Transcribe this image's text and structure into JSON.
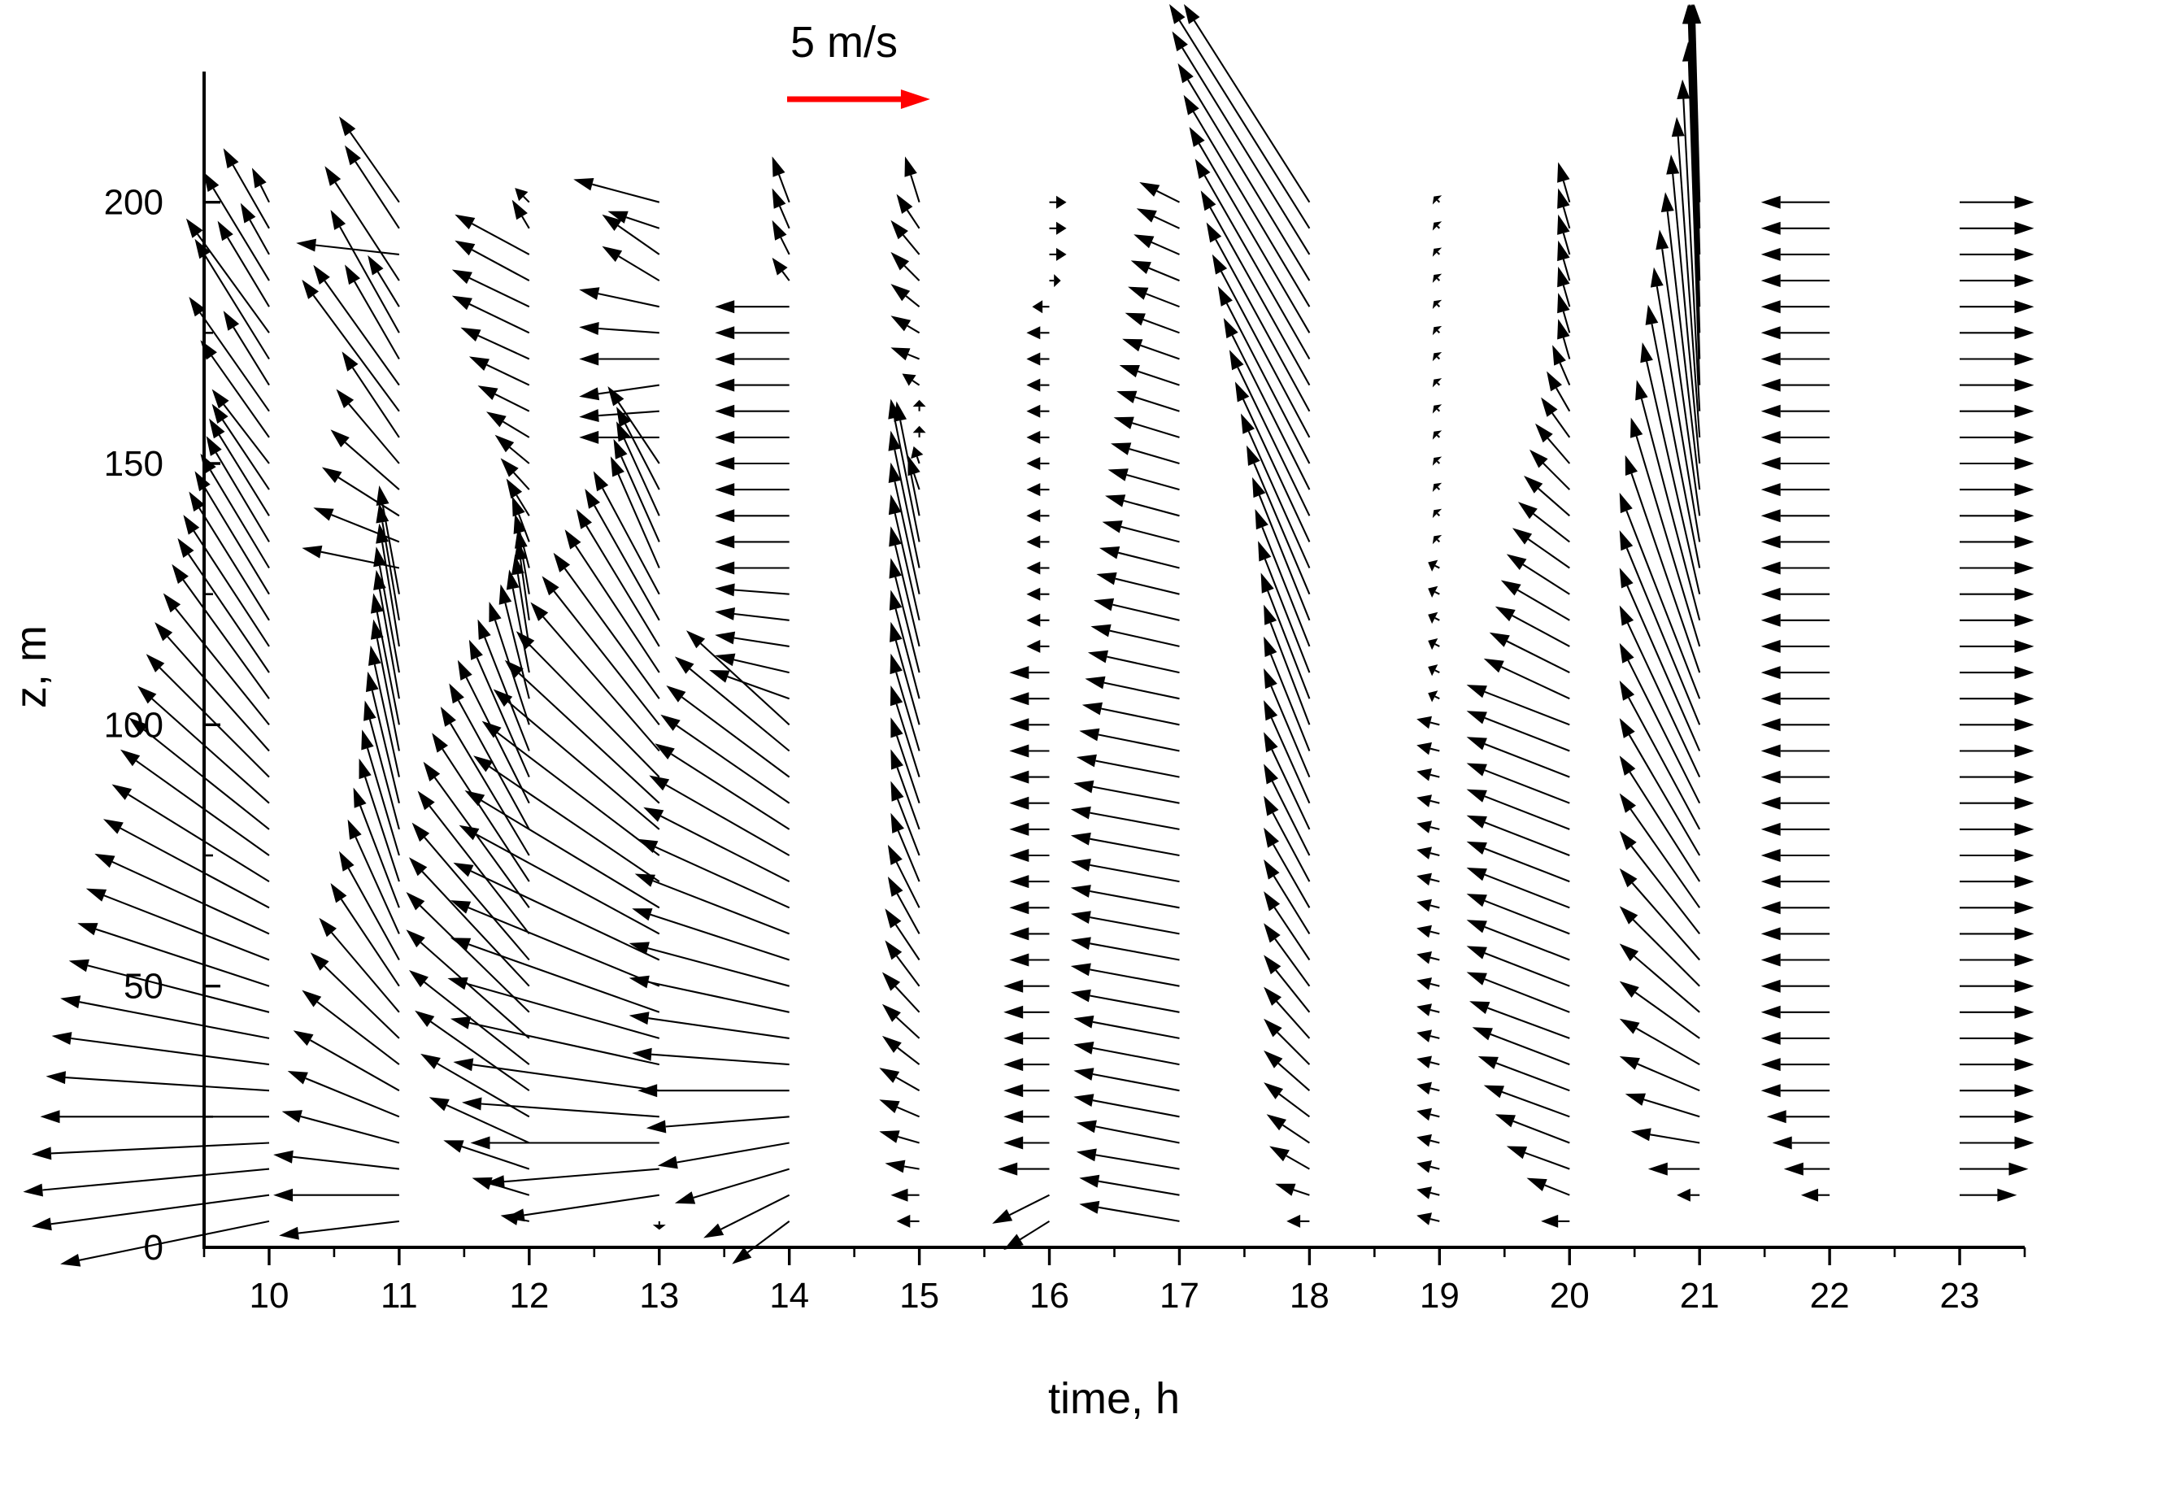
{
  "chart_data": {
    "type": "vector-field",
    "title": "",
    "xlabel": "time, h",
    "ylabel": "z, m",
    "xlim": [
      9.5,
      23.5
    ],
    "ylim": [
      0,
      225
    ],
    "xticks": [
      10,
      11,
      12,
      13,
      14,
      15,
      16,
      17,
      18,
      19,
      20,
      21,
      22,
      23
    ],
    "xtick_labels": [
      "10",
      "11",
      "12",
      "13",
      "14",
      "15",
      "16",
      "17",
      "18",
      "19",
      "20",
      "21",
      "22",
      "23"
    ],
    "yticks": [
      0,
      50,
      100,
      150,
      200
    ],
    "ytick_labels": [
      "0",
      "50",
      "100",
      "150",
      "200"
    ],
    "reference_vector": {
      "label": "5 m/s",
      "speed": 5,
      "direction": "east",
      "color": "#ff0000"
    },
    "vector_color": "#000000",
    "vector_scale_hours_per_mps": 0.22,
    "heights": [
      5,
      10,
      15,
      20,
      25,
      30,
      35,
      40,
      45,
      50,
      55,
      60,
      65,
      70,
      75,
      80,
      85,
      90,
      95,
      100,
      105,
      110,
      115,
      120,
      125,
      130,
      135,
      140,
      145,
      150,
      155,
      160,
      165,
      170,
      175,
      180,
      185,
      190,
      195,
      200
    ],
    "series": [
      {
        "time": 10,
        "u": [
          -7.3,
          -8.3,
          -8.6,
          -8.3,
          -8.0,
          -7.8,
          -7.6,
          -7.3,
          -7.0,
          -6.7,
          -6.4,
          -6.1,
          -5.8,
          -5.5,
          -5.2,
          -4.9,
          -4.6,
          -4.3,
          -4.0,
          -3.7,
          -3.4,
          -3.2,
          -3.0,
          -2.8,
          -2.6,
          -2.4,
          -2.2,
          -2.1,
          -2.0,
          -2.0,
          -2.4,
          -2.8,
          -1.6,
          -2.6,
          -2.9,
          -1.8,
          -2.3,
          -1.0,
          -1.6,
          -0.6
        ],
        "v": [
          -1.5,
          -1.1,
          -0.8,
          -0.4,
          0.0,
          0.5,
          1.0,
          1.4,
          1.8,
          2.2,
          2.5,
          2.8,
          3.1,
          3.4,
          3.7,
          3.9,
          4.1,
          4.3,
          4.5,
          4.6,
          4.7,
          4.7,
          4.6,
          4.5,
          4.3,
          4.0,
          3.7,
          3.4,
          3.0,
          2.6,
          3.4,
          4.0,
          2.6,
          4.2,
          4.0,
          3.0,
          3.8,
          1.8,
          2.8,
          1.2
        ]
      },
      {
        "time": 11,
        "u": [
          -4.2,
          -4.4,
          -4.4,
          -4.1,
          -3.9,
          -3.7,
          -3.4,
          -3.1,
          -2.8,
          -2.4,
          -2.1,
          -1.8,
          -1.6,
          -1.4,
          -1.3,
          -1.2,
          -1.1,
          -1.0,
          -0.9,
          -0.9,
          -0.8,
          -0.8,
          -0.7,
          -0.7,
          -0.7,
          -3.4,
          -3.0,
          -2.7,
          -2.4,
          -2.2,
          -2.0,
          -3.4,
          -3.0,
          -1.9,
          -2.4,
          -1.1,
          -2.6,
          -3.6,
          -1.9,
          -2.1
        ],
        "v": [
          -0.5,
          0.0,
          0.5,
          1.1,
          1.6,
          2.1,
          2.6,
          3.0,
          3.3,
          3.6,
          3.8,
          4.0,
          4.2,
          4.3,
          4.4,
          4.5,
          4.6,
          4.6,
          4.6,
          4.6,
          4.5,
          4.4,
          4.3,
          4.1,
          3.8,
          0.7,
          1.2,
          1.7,
          2.1,
          2.6,
          3.0,
          4.6,
          4.2,
          3.3,
          4.3,
          1.8,
          4.0,
          0.4,
          2.9,
          3.0
        ]
      },
      {
        "time": 12,
        "u": [
          -1.0,
          -2.0,
          -3.0,
          -3.5,
          -3.8,
          -4.0,
          -4.2,
          -4.3,
          -4.3,
          -4.2,
          -4.1,
          -3.9,
          -3.7,
          -3.4,
          -3.1,
          -2.8,
          -2.5,
          -2.1,
          -1.8,
          -1.4,
          -1.0,
          -0.7,
          -0.5,
          -0.4,
          -0.4,
          -0.5,
          -0.6,
          -0.8,
          -1.0,
          -1.2,
          -1.5,
          -1.8,
          -2.1,
          -2.4,
          -2.7,
          -2.7,
          -2.6,
          -2.6,
          -0.6,
          -0.5
        ],
        "v": [
          0.2,
          0.6,
          1.0,
          1.6,
          2.2,
          2.8,
          3.3,
          3.8,
          4.2,
          4.5,
          4.8,
          5.0,
          5.1,
          5.2,
          5.2,
          5.1,
          5.0,
          4.8,
          4.6,
          4.3,
          4.0,
          3.6,
          3.2,
          2.8,
          2.3,
          1.9,
          1.6,
          1.3,
          1.1,
          1.0,
          0.9,
          0.9,
          1.0,
          1.1,
          1.3,
          1.3,
          1.4,
          1.4,
          1.0,
          0.5
        ]
      },
      {
        "time": 13,
        "u": [
          0.0,
          -5.4,
          -6.1,
          -6.6,
          -6.9,
          -7.2,
          -7.3,
          -7.4,
          -7.3,
          -7.3,
          -7.2,
          -7.0,
          -6.8,
          -6.5,
          -6.2,
          -5.8,
          -5.4,
          -5.0,
          -4.5,
          -4.1,
          -3.7,
          -3.3,
          -2.9,
          -2.6,
          -2.3,
          -1.7,
          -1.6,
          -1.5,
          -1.5,
          -1.8,
          -2.8,
          -2.8,
          -2.8,
          -2.8,
          -2.8,
          -2.8,
          -2.0,
          -2.0,
          -1.8,
          -3.0
        ],
        "v": [
          -0.3,
          -0.8,
          -0.5,
          0.0,
          0.5,
          1.0,
          1.6,
          2.1,
          2.6,
          3.0,
          3.4,
          3.8,
          4.1,
          4.4,
          4.7,
          4.9,
          5.0,
          5.1,
          5.2,
          5.2,
          5.1,
          5.0,
          4.8,
          4.6,
          4.3,
          3.9,
          3.6,
          3.3,
          2.9,
          2.7,
          0.0,
          -0.2,
          -0.4,
          0.0,
          0.2,
          0.6,
          1.2,
          1.4,
          0.6,
          0.8
        ]
      },
      {
        "time": 14,
        "u": [
          -2.0,
          -3.0,
          -4.0,
          -4.6,
          -5.0,
          -5.3,
          -5.5,
          -5.6,
          -5.6,
          -5.6,
          -5.5,
          -5.4,
          -5.3,
          -5.1,
          -4.9,
          -4.7,
          -4.5,
          -4.3,
          -4.0,
          -3.6,
          -2.8,
          -2.6,
          -2.6,
          -2.6,
          -2.6,
          -2.6,
          -2.6,
          -2.6,
          -2.6,
          -2.6,
          -2.6,
          -2.6,
          -2.6,
          -2.6,
          -2.6,
          -2.6,
          -0.6,
          -0.6,
          -0.6,
          -0.6
        ],
        "v": [
          -1.5,
          -1.5,
          -1.2,
          -0.8,
          -0.4,
          0.0,
          0.4,
          0.8,
          1.2,
          1.5,
          1.8,
          2.1,
          2.4,
          2.6,
          2.8,
          3.0,
          3.1,
          3.2,
          3.3,
          3.3,
          1.0,
          0.6,
          0.4,
          0.3,
          0.2,
          0.0,
          0.0,
          0.0,
          0.0,
          0.0,
          0.0,
          0.0,
          0.0,
          0.0,
          0.0,
          0.0,
          0.8,
          1.2,
          1.4,
          1.6
        ]
      },
      {
        "time": 15,
        "u": [
          -0.8,
          -1.0,
          -1.2,
          -1.4,
          -1.4,
          -1.4,
          -1.3,
          -1.3,
          -1.3,
          -1.2,
          -1.2,
          -1.1,
          -1.1,
          -1.0,
          -1.0,
          -1.0,
          -1.0,
          -1.0,
          -1.0,
          -1.0,
          -1.0,
          -1.0,
          -1.0,
          -1.0,
          -1.0,
          -1.0,
          -1.0,
          -0.8,
          -0.4,
          -0.2,
          0.0,
          0.0,
          -0.6,
          -1.0,
          -1.0,
          -1.0,
          -1.0,
          -1.0,
          -0.8,
          -0.5
        ],
        "v": [
          0.0,
          0.0,
          0.2,
          0.4,
          0.6,
          0.8,
          1.0,
          1.2,
          1.4,
          1.6,
          1.8,
          2.0,
          2.2,
          2.4,
          2.6,
          2.8,
          3.0,
          3.2,
          3.4,
          3.6,
          3.8,
          4.0,
          4.2,
          4.4,
          4.6,
          4.8,
          5.0,
          4.0,
          1.2,
          0.6,
          0.4,
          0.4,
          0.4,
          0.4,
          0.6,
          0.8,
          1.0,
          1.2,
          1.2,
          1.6
        ]
      },
      {
        "time": 16,
        "u": [
          -1.6,
          -2.0,
          -1.8,
          -1.6,
          -1.6,
          -1.6,
          -1.6,
          -1.6,
          -1.6,
          -1.6,
          -1.4,
          -1.4,
          -1.4,
          -1.4,
          -1.4,
          -1.4,
          -1.4,
          -1.4,
          -1.4,
          -1.4,
          -1.4,
          -1.4,
          -0.8,
          -0.8,
          -0.8,
          -0.8,
          -0.8,
          -0.8,
          -0.8,
          -0.8,
          -0.8,
          -0.8,
          -0.8,
          -0.8,
          -0.8,
          -0.6,
          0.4,
          0.6,
          0.6,
          0.6
        ],
        "v": [
          -1.0,
          -1.0,
          0.0,
          0.0,
          0.0,
          0.0,
          0.0,
          0.0,
          0.0,
          0.0,
          0.0,
          0.0,
          0.0,
          0.0,
          0.0,
          0.0,
          0.0,
          0.0,
          0.0,
          0.0,
          0.0,
          0.0,
          0.0,
          0.0,
          0.0,
          0.0,
          0.0,
          0.0,
          0.0,
          0.0,
          0.0,
          0.0,
          0.0,
          0.0,
          0.0,
          0.0,
          0.0,
          0.0,
          0.0,
          0.0
        ]
      },
      {
        "time": 17,
        "u": [
          -3.5,
          -3.5,
          -3.6,
          -3.6,
          -3.7,
          -3.7,
          -3.7,
          -3.7,
          -3.8,
          -3.8,
          -3.8,
          -3.8,
          -3.8,
          -3.8,
          -3.8,
          -3.8,
          -3.7,
          -3.6,
          -3.5,
          -3.4,
          -3.3,
          -3.2,
          -3.1,
          -3.0,
          -2.9,
          -2.8,
          -2.7,
          -2.6,
          -2.5,
          -2.4,
          -2.3,
          -2.2,
          -2.1,
          -2.0,
          -1.9,
          -1.8,
          -1.7,
          -1.6,
          -1.5,
          -1.4
        ],
        "v": [
          0.6,
          0.6,
          0.6,
          0.7,
          0.7,
          0.7,
          0.7,
          0.7,
          0.7,
          0.7,
          0.7,
          0.7,
          0.7,
          0.7,
          0.7,
          0.7,
          0.7,
          0.7,
          0.7,
          0.7,
          0.7,
          0.7,
          0.7,
          0.7,
          0.7,
          0.7,
          0.7,
          0.7,
          0.7,
          0.7,
          0.7,
          0.7,
          0.7,
          0.7,
          0.7,
          0.7,
          0.7,
          0.7,
          0.7,
          0.7
        ]
      },
      {
        "time": 18,
        "u": [
          -0.8,
          -1.2,
          -1.4,
          -1.5,
          -1.6,
          -1.6,
          -1.6,
          -1.6,
          -1.6,
          -1.6,
          -1.6,
          -1.6,
          -1.6,
          -1.6,
          -1.6,
          -1.6,
          -1.6,
          -1.6,
          -1.6,
          -1.6,
          -1.7,
          -1.8,
          -1.9,
          -2.0,
          -2.2,
          -2.4,
          -2.6,
          -2.8,
          -3.0,
          -3.2,
          -3.4,
          -3.6,
          -3.8,
          -4.0,
          -4.2,
          -4.4,
          -4.6,
          -4.8,
          -5.0,
          -5.2
        ],
        "v": [
          0.0,
          0.4,
          0.8,
          1.0,
          1.2,
          1.4,
          1.6,
          1.8,
          2.0,
          2.2,
          2.4,
          2.6,
          2.8,
          3.0,
          3.2,
          3.4,
          3.6,
          3.8,
          4.0,
          4.2,
          4.4,
          4.6,
          4.8,
          5.0,
          5.2,
          5.4,
          5.6,
          5.8,
          6.0,
          6.2,
          6.4,
          6.6,
          6.8,
          7.0,
          7.2,
          7.4,
          7.6,
          7.8,
          8.0,
          8.2
        ]
      },
      {
        "time": 19,
        "u": [
          -0.8,
          -0.8,
          -0.8,
          -0.8,
          -0.8,
          -0.8,
          -0.8,
          -0.8,
          -0.8,
          -0.8,
          -0.8,
          -0.8,
          -0.8,
          -0.8,
          -0.8,
          -0.8,
          -0.8,
          -0.8,
          -0.8,
          -0.8,
          -0.4,
          -0.4,
          -0.4,
          -0.4,
          -0.4,
          -0.4,
          -0.2,
          -0.2,
          -0.2,
          -0.2,
          -0.2,
          -0.2,
          -0.2,
          -0.2,
          -0.2,
          -0.2,
          -0.2,
          -0.2,
          -0.2,
          -0.2
        ],
        "v": [
          0.2,
          0.2,
          0.2,
          0.2,
          0.2,
          0.2,
          0.2,
          0.2,
          0.2,
          0.2,
          0.2,
          0.2,
          0.2,
          0.2,
          0.2,
          0.2,
          0.2,
          0.2,
          0.2,
          0.2,
          0.2,
          0.2,
          0.2,
          0.2,
          0.2,
          0.2,
          0.2,
          0.2,
          0.2,
          0.2,
          0.2,
          0.2,
          0.2,
          0.2,
          0.2,
          0.2,
          0.2,
          0.2,
          0.2,
          0.2
        ]
      },
      {
        "time": 20,
        "u": [
          -1.0,
          -1.5,
          -2.2,
          -2.6,
          -3.0,
          -3.2,
          -3.4,
          -3.5,
          -3.6,
          -3.6,
          -3.6,
          -3.6,
          -3.6,
          -3.6,
          -3.6,
          -3.6,
          -3.6,
          -3.6,
          -3.6,
          -3.6,
          -3.0,
          -2.8,
          -2.6,
          -2.4,
          -2.2,
          -2.0,
          -1.8,
          -1.6,
          -1.4,
          -1.2,
          -1.0,
          -0.8,
          -0.6,
          -0.4,
          -0.4,
          -0.4,
          -0.4,
          -0.4,
          -0.4,
          -0.4
        ],
        "v": [
          0.0,
          0.6,
          0.8,
          1.0,
          1.1,
          1.2,
          1.3,
          1.3,
          1.4,
          1.4,
          1.4,
          1.4,
          1.4,
          1.4,
          1.4,
          1.4,
          1.4,
          1.4,
          1.4,
          1.4,
          1.4,
          1.4,
          1.4,
          1.4,
          1.4,
          1.4,
          1.4,
          1.4,
          1.4,
          1.4,
          1.4,
          1.4,
          1.4,
          1.4,
          1.4,
          1.4,
          1.4,
          1.4,
          1.4,
          1.4
        ]
      },
      {
        "time": 21,
        "u": [
          0.0,
          -0.8,
          -1.8,
          -2.4,
          -2.6,
          -2.8,
          -2.8,
          -2.8,
          -2.8,
          -2.8,
          -2.8,
          -2.8,
          -2.8,
          -2.8,
          -2.8,
          -2.8,
          -2.8,
          -2.8,
          -2.8,
          -2.8,
          -2.8,
          -2.6,
          -2.4,
          -2.2,
          -2.0,
          -1.8,
          -1.6,
          -1.4,
          -1.2,
          -1.0,
          -0.8,
          -0.6,
          -0.4,
          -0.4,
          -0.4,
          -0.4,
          -0.4,
          -0.4,
          -0.4,
          -0.4
        ],
        "v": [
          0.0,
          0.0,
          0.0,
          0.4,
          0.8,
          1.2,
          1.6,
          2.0,
          2.4,
          2.8,
          3.2,
          3.6,
          4.0,
          4.4,
          4.8,
          5.2,
          5.6,
          6.0,
          6.4,
          6.8,
          7.2,
          7.6,
          8.0,
          8.4,
          8.8,
          9.2,
          9.6,
          10.0,
          10.4,
          10.8,
          11.2,
          11.6,
          12.0,
          12.4,
          12.8,
          13.2,
          13.6,
          14.0,
          14.4,
          14.8
        ]
      },
      {
        "time": 22,
        "u": [
          0.0,
          -1.0,
          -1.6,
          -2.0,
          -2.2,
          -2.4,
          -2.4,
          -2.4,
          -2.4,
          -2.4,
          -2.4,
          -2.4,
          -2.4,
          -2.4,
          -2.4,
          -2.4,
          -2.4,
          -2.4,
          -2.4,
          -2.4,
          -2.4,
          -2.4,
          -2.4,
          -2.4,
          -2.4,
          -2.4,
          -2.4,
          -2.4,
          -2.4,
          -2.4,
          -2.4,
          -2.4,
          -2.4,
          -2.4,
          -2.4,
          -2.4,
          -2.4,
          -2.4,
          -2.4,
          -2.4
        ],
        "v": [
          0.0,
          0.0,
          0.0,
          0.0,
          0.0,
          0.0,
          0.0,
          0.0,
          0.0,
          0.0,
          0.0,
          0.0,
          0.0,
          0.0,
          0.0,
          0.0,
          0.0,
          0.0,
          0.0,
          0.0,
          0.0,
          0.0,
          0.0,
          0.0,
          0.0,
          0.0,
          0.0,
          0.0,
          0.0,
          0.0,
          0.0,
          0.0,
          0.0,
          0.0,
          0.0,
          0.0,
          0.0,
          0.0,
          0.0,
          0.0
        ]
      },
      {
        "time": 23,
        "u": [
          0.0,
          2.0,
          2.4,
          2.6,
          2.6,
          2.6,
          2.6,
          2.6,
          2.6,
          2.6,
          2.6,
          2.6,
          2.6,
          2.6,
          2.6,
          2.6,
          2.6,
          2.6,
          2.6,
          2.6,
          2.6,
          2.6,
          2.6,
          2.6,
          2.6,
          2.6,
          2.6,
          2.6,
          2.6,
          2.6,
          2.6,
          2.6,
          2.6,
          2.6,
          2.6,
          2.6,
          2.6,
          2.6,
          2.6,
          2.6
        ],
        "v": [
          0.0,
          0.0,
          0.0,
          0.0,
          0.0,
          0.0,
          0.0,
          0.0,
          0.0,
          0.0,
          0.0,
          0.0,
          0.0,
          0.0,
          0.0,
          0.0,
          0.0,
          0.0,
          0.0,
          0.0,
          0.0,
          0.0,
          0.0,
          0.0,
          0.0,
          0.0,
          0.0,
          0.0,
          0.0,
          0.0,
          0.0,
          0.0,
          0.0,
          0.0,
          0.0,
          0.0,
          0.0,
          0.0,
          0.0,
          0.0
        ]
      }
    ]
  }
}
